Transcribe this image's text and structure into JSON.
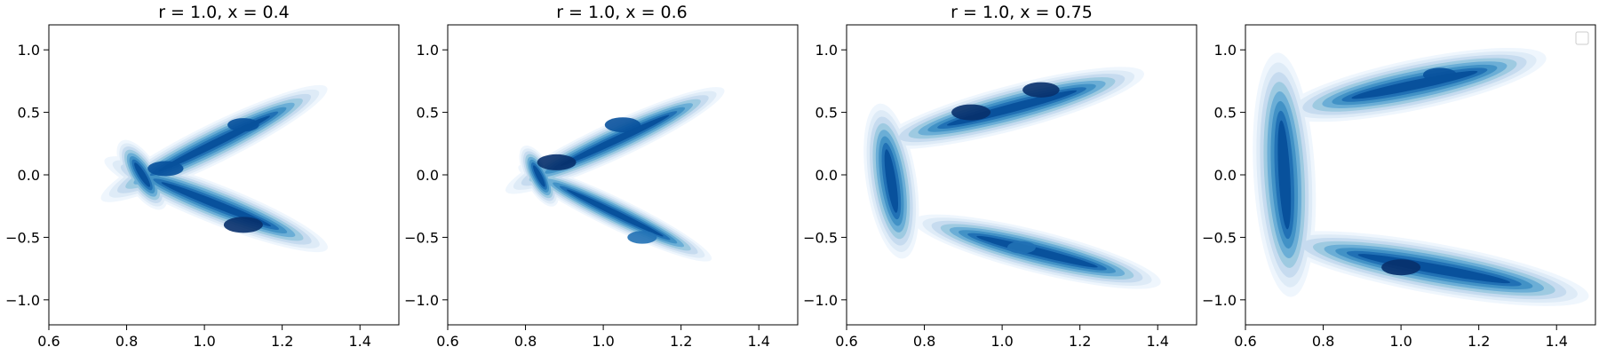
{
  "colors": {
    "background": "#ffffff",
    "axis": "#000000",
    "blues": [
      "#eff6fd",
      "#deebf7",
      "#c6dbef",
      "#9ecae1",
      "#6baed6",
      "#4292c6",
      "#2171b5",
      "#08519c",
      "#08306b"
    ]
  },
  "chart_data": [
    {
      "type": "kde_contourf",
      "title": "r = 1.0, x = 0.4",
      "xlim": [
        0.6,
        1.5
      ],
      "ylim": [
        -1.2,
        1.2
      ],
      "xticks": [
        0.6,
        0.8,
        1.0,
        1.2,
        1.4
      ],
      "yticks": [
        -1.0,
        -0.5,
        0.0,
        0.5,
        1.0
      ],
      "colormap": "Blues",
      "grid": false,
      "legend": false,
      "density_peaks": [
        {
          "x": 0.9,
          "y": 0.05,
          "level": 0.85
        },
        {
          "x": 1.1,
          "y": -0.4,
          "level": 1.0
        },
        {
          "x": 1.1,
          "y": 0.4,
          "level": 0.65
        }
      ]
    },
    {
      "type": "kde_contourf",
      "title": "r = 1.0, x = 0.6",
      "xlim": [
        0.6,
        1.5
      ],
      "ylim": [
        -1.2,
        1.2
      ],
      "xticks": [
        0.6,
        0.8,
        1.0,
        1.2,
        1.4
      ],
      "yticks": [
        -1.0,
        -0.5,
        0.0,
        0.5,
        1.0
      ],
      "colormap": "Blues",
      "grid": false,
      "legend": false,
      "density_peaks": [
        {
          "x": 0.88,
          "y": 0.1,
          "level": 1.0
        },
        {
          "x": 1.05,
          "y": 0.4,
          "level": 0.85
        },
        {
          "x": 1.1,
          "y": -0.5,
          "level": 0.55
        }
      ]
    },
    {
      "type": "kde_contourf",
      "title": "r = 1.0, x = 0.75",
      "xlim": [
        0.6,
        1.5
      ],
      "ylim": [
        -1.2,
        1.2
      ],
      "xticks": [
        0.6,
        0.8,
        1.0,
        1.2,
        1.4
      ],
      "yticks": [
        -1.0,
        -0.5,
        0.0,
        0.5,
        1.0
      ],
      "colormap": "Blues",
      "grid": false,
      "legend": false,
      "density_peaks": [
        {
          "x": 0.92,
          "y": 0.5,
          "level": 1.0
        },
        {
          "x": 1.1,
          "y": 0.68,
          "level": 0.9
        },
        {
          "x": 1.05,
          "y": -0.58,
          "level": 0.5
        }
      ]
    },
    {
      "type": "kde_contourf",
      "title": "",
      "xlim": [
        0.6,
        1.5
      ],
      "ylim": [
        -1.2,
        1.2
      ],
      "xticks": [
        0.6,
        0.8,
        1.0,
        1.2,
        1.4
      ],
      "yticks": [
        -1.0,
        -0.5,
        0.0,
        0.5,
        1.0
      ],
      "colormap": "Blues",
      "grid": false,
      "legend": true,
      "legend_placement": "top-right",
      "legend_entries": [],
      "density_peaks": [
        {
          "x": 1.0,
          "y": -0.74,
          "level": 1.0
        },
        {
          "x": 1.1,
          "y": 0.8,
          "level": 0.75
        }
      ]
    }
  ]
}
